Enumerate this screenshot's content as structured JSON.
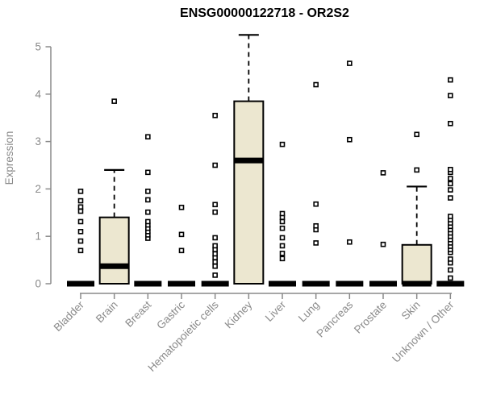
{
  "chart_data": {
    "type": "boxplot",
    "title": "ENSG00000122718 - OR2S2",
    "ylabel": "Expression",
    "ylim": [
      0,
      5
    ],
    "yticks": [
      0,
      1,
      2,
      3,
      4,
      5
    ],
    "grid": false,
    "legend": "none",
    "categories": [
      "Bladder",
      "Brain",
      "Breast",
      "Gastric",
      "Hematopoietic cells",
      "Kidney",
      "Liver",
      "Lung",
      "Pancreas",
      "Prostate",
      "Skin",
      "Unknown / Other"
    ],
    "series": [
      {
        "category": "Bladder",
        "q1": 0,
        "median": 0,
        "q3": 0,
        "whisker_low": 0,
        "whisker_high": 0,
        "outliers": [
          0.7,
          0.9,
          1.1,
          1.31,
          1.53,
          1.62,
          1.75,
          1.95
        ]
      },
      {
        "category": "Brain",
        "q1": 0,
        "median": 0.37,
        "q3": 1.4,
        "whisker_low": 0,
        "whisker_high": 2.4,
        "outliers": [
          3.85
        ]
      },
      {
        "category": "Breast",
        "q1": 0,
        "median": 0,
        "q3": 0,
        "whisker_low": 0,
        "whisker_high": 0,
        "outliers": [
          0.96,
          1.03,
          1.1,
          1.17,
          1.24,
          1.31,
          1.51,
          1.77,
          1.95,
          2.35,
          3.1
        ]
      },
      {
        "category": "Gastric",
        "q1": 0,
        "median": 0,
        "q3": 0,
        "whisker_low": 0,
        "whisker_high": 0,
        "outliers": [
          0.7,
          1.04,
          1.61
        ]
      },
      {
        "category": "Hematopoietic cells",
        "q1": 0,
        "median": 0,
        "q3": 0,
        "whisker_low": 0,
        "whisker_high": 0,
        "outliers": [
          0.18,
          0.37,
          0.46,
          0.55,
          0.63,
          0.72,
          0.8,
          0.97,
          1.51,
          1.67,
          2.5,
          3.55
        ]
      },
      {
        "category": "Kidney",
        "q1": 0,
        "median": 2.6,
        "q3": 3.85,
        "whisker_low": 0,
        "whisker_high": 5.25,
        "outliers": []
      },
      {
        "category": "Liver",
        "q1": 0,
        "median": 0,
        "q3": 0,
        "whisker_low": 0,
        "whisker_high": 0,
        "outliers": [
          0.53,
          0.64,
          0.8,
          0.97,
          1.17,
          1.31,
          1.4,
          1.48,
          2.94
        ]
      },
      {
        "category": "Lung",
        "q1": 0,
        "median": 0,
        "q3": 0,
        "whisker_low": 0,
        "whisker_high": 0,
        "outliers": [
          0.86,
          1.14,
          1.22,
          1.68,
          4.2
        ]
      },
      {
        "category": "Pancreas",
        "q1": 0,
        "median": 0,
        "q3": 0,
        "whisker_low": 0,
        "whisker_high": 0,
        "outliers": [
          0.88,
          3.04,
          4.65
        ]
      },
      {
        "category": "Prostate",
        "q1": 0,
        "median": 0,
        "q3": 0,
        "whisker_low": 0,
        "whisker_high": 0,
        "outliers": [
          0.83,
          2.34
        ]
      },
      {
        "category": "Skin",
        "q1": 0,
        "median": 0,
        "q3": 0.82,
        "whisker_low": 0,
        "whisker_high": 2.05,
        "outliers": [
          2.4,
          3.15
        ]
      },
      {
        "category": "Unknown / Other",
        "q1": 0,
        "median": 0,
        "q3": 0,
        "whisker_low": 0,
        "whisker_high": 0,
        "outliers": [
          0.12,
          0.29,
          0.44,
          0.52,
          0.66,
          0.72,
          0.79,
          0.86,
          0.93,
          1.0,
          1.07,
          1.14,
          1.21,
          1.28,
          1.35,
          1.42,
          1.81,
          1.98,
          2.11,
          2.22,
          2.35,
          2.41,
          3.38,
          3.97,
          4.3
        ]
      }
    ],
    "colors": {
      "box_fill": "#ECE7D0",
      "box_stroke": "#000000",
      "median": "#000000",
      "axis": "#8A8A8A",
      "title": "#000000",
      "outlier_fill": "#FFFFFF",
      "outlier_stroke": "#000000"
    }
  }
}
